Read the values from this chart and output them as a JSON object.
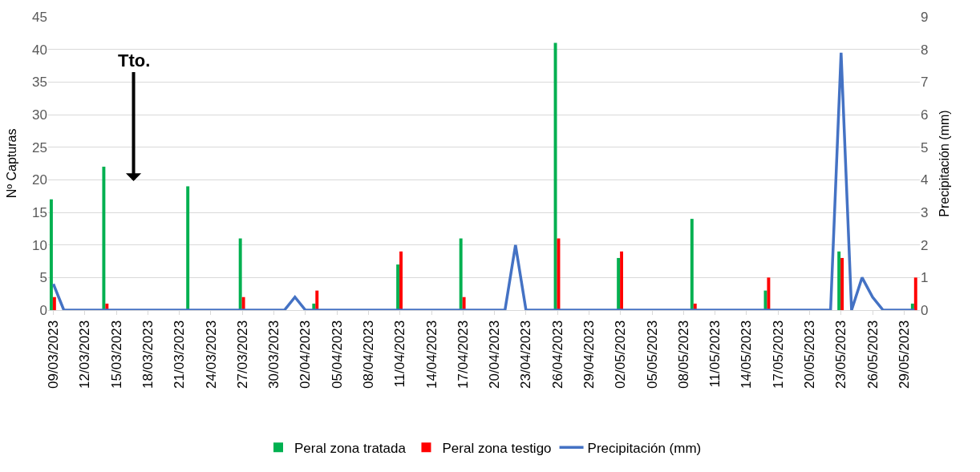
{
  "chart_data": {
    "type": "bar",
    "ylabel": "Nº Capturas",
    "y2label": "Precipitación (mm)",
    "xlim": [
      "2023-03-08T12:00",
      "2023-05-30T12:00"
    ],
    "xticks": [
      {
        "value": "2023-03-09",
        "label": "09/03/2023"
      },
      {
        "value": "2023-03-12",
        "label": "12/03/2023"
      },
      {
        "value": "2023-03-15",
        "label": "15/03/2023"
      },
      {
        "value": "2023-03-18",
        "label": "18/03/2023"
      },
      {
        "value": "2023-03-21",
        "label": "21/03/2023"
      },
      {
        "value": "2023-03-24",
        "label": "24/03/2023"
      },
      {
        "value": "2023-03-27",
        "label": "27/03/2023"
      },
      {
        "value": "2023-03-30",
        "label": "30/03/2023"
      },
      {
        "value": "2023-04-02",
        "label": "02/04/2023"
      },
      {
        "value": "2023-04-05",
        "label": "05/04/2023"
      },
      {
        "value": "2023-04-08",
        "label": "08/04/2023"
      },
      {
        "value": "2023-04-11",
        "label": "11/04/2023"
      },
      {
        "value": "2023-04-14",
        "label": "14/04/2023"
      },
      {
        "value": "2023-04-17",
        "label": "17/04/2023"
      },
      {
        "value": "2023-04-20",
        "label": "20/04/2023"
      },
      {
        "value": "2023-04-23",
        "label": "23/04/2023"
      },
      {
        "value": "2023-04-26",
        "label": "26/04/2023"
      },
      {
        "value": "2023-04-29",
        "label": "29/04/2023"
      },
      {
        "value": "2023-05-02",
        "label": "02/05/2023"
      },
      {
        "value": "2023-05-05",
        "label": "05/05/2023"
      },
      {
        "value": "2023-05-08",
        "label": "08/05/2023"
      },
      {
        "value": "2023-05-11",
        "label": "11/05/2023"
      },
      {
        "value": "2023-05-14",
        "label": "14/05/2023"
      },
      {
        "value": "2023-05-17",
        "label": "17/05/2023"
      },
      {
        "value": "2023-05-20",
        "label": "20/05/2023"
      },
      {
        "value": "2023-05-23",
        "label": "23/05/2023"
      },
      {
        "value": "2023-05-26",
        "label": "26/05/2023"
      },
      {
        "value": "2023-05-29",
        "label": "29/05/2023"
      }
    ],
    "ylim": [
      0,
      45
    ],
    "yticks": [
      0,
      5,
      10,
      15,
      20,
      25,
      30,
      35,
      40,
      45
    ],
    "y2lim": [
      0,
      9
    ],
    "y2ticks": [
      0,
      1,
      2,
      3,
      4,
      5,
      6,
      7,
      8,
      9
    ],
    "grid": "y",
    "legend": "bottom",
    "annotations": [
      "Tto."
    ],
    "series": [
      {
        "name": "Peral zona tratada",
        "color": "#00b050",
        "x": [
          "2023-03-09",
          "2023-03-14",
          "2023-03-22",
          "2023-03-27",
          "2023-04-03",
          "2023-04-11",
          "2023-04-17",
          "2023-04-26",
          "2023-05-02",
          "2023-05-09",
          "2023-05-16",
          "2023-05-23",
          "2023-05-30"
        ],
        "values": [
          17,
          22,
          19,
          11,
          1,
          7,
          11,
          41,
          8,
          14,
          3,
          9,
          1
        ]
      },
      {
        "name": "Peral zona testigo",
        "color": "#ff0000",
        "x": [
          "2023-03-09",
          "2023-03-14",
          "2023-03-22",
          "2023-03-27",
          "2023-04-03",
          "2023-04-11",
          "2023-04-17",
          "2023-04-26",
          "2023-05-02",
          "2023-05-09",
          "2023-05-16",
          "2023-05-23",
          "2023-05-30"
        ],
        "values": [
          2,
          1,
          0,
          2,
          3,
          9,
          2,
          11,
          9,
          1,
          5,
          8,
          5
        ]
      },
      {
        "name": "Precipitación (mm)",
        "color": "#4472c4",
        "type": "line",
        "axis": "y2",
        "marker": "none",
        "line_style": "solid",
        "x": [
          "2023-03-09",
          "2023-03-10",
          "2023-03-11",
          "2023-03-12",
          "2023-03-13",
          "2023-03-14",
          "2023-03-15",
          "2023-03-16",
          "2023-03-17",
          "2023-03-18",
          "2023-03-19",
          "2023-03-20",
          "2023-03-21",
          "2023-03-22",
          "2023-03-23",
          "2023-03-24",
          "2023-03-25",
          "2023-03-26",
          "2023-03-27",
          "2023-03-28",
          "2023-03-29",
          "2023-03-30",
          "2023-03-31",
          "2023-04-01",
          "2023-04-02",
          "2023-04-03",
          "2023-04-04",
          "2023-04-05",
          "2023-04-06",
          "2023-04-07",
          "2023-04-08",
          "2023-04-09",
          "2023-04-10",
          "2023-04-11",
          "2023-04-12",
          "2023-04-13",
          "2023-04-14",
          "2023-04-15",
          "2023-04-16",
          "2023-04-17",
          "2023-04-18",
          "2023-04-19",
          "2023-04-20",
          "2023-04-21",
          "2023-04-22",
          "2023-04-23",
          "2023-04-24",
          "2023-04-25",
          "2023-04-26",
          "2023-04-27",
          "2023-04-28",
          "2023-04-29",
          "2023-04-30",
          "2023-05-01",
          "2023-05-02",
          "2023-05-03",
          "2023-05-04",
          "2023-05-05",
          "2023-05-06",
          "2023-05-07",
          "2023-05-08",
          "2023-05-09",
          "2023-05-10",
          "2023-05-11",
          "2023-05-12",
          "2023-05-13",
          "2023-05-14",
          "2023-05-15",
          "2023-05-16",
          "2023-05-17",
          "2023-05-18",
          "2023-05-19",
          "2023-05-20",
          "2023-05-21",
          "2023-05-22",
          "2023-05-23",
          "2023-05-24",
          "2023-05-25",
          "2023-05-26",
          "2023-05-27",
          "2023-05-28",
          "2023-05-29",
          "2023-05-30"
        ],
        "values": [
          0.8,
          0,
          0,
          0,
          0,
          0,
          0,
          0,
          0,
          0,
          0,
          0,
          0,
          0,
          0,
          0,
          0,
          0,
          0,
          0,
          0,
          0,
          0,
          0.4,
          0,
          0,
          0,
          0,
          0,
          0,
          0,
          0,
          0,
          0,
          0,
          0,
          0,
          0,
          0,
          0,
          0,
          0,
          0,
          0,
          2.0,
          0,
          0,
          0,
          0,
          0,
          0,
          0,
          0,
          0,
          0,
          0,
          0,
          0,
          0,
          0,
          0,
          0,
          0,
          0,
          0,
          0,
          0,
          0,
          0,
          0,
          0,
          0,
          0,
          0,
          0,
          7.9,
          0,
          1.0,
          0.4,
          0,
          0,
          0,
          0
        ]
      }
    ]
  }
}
